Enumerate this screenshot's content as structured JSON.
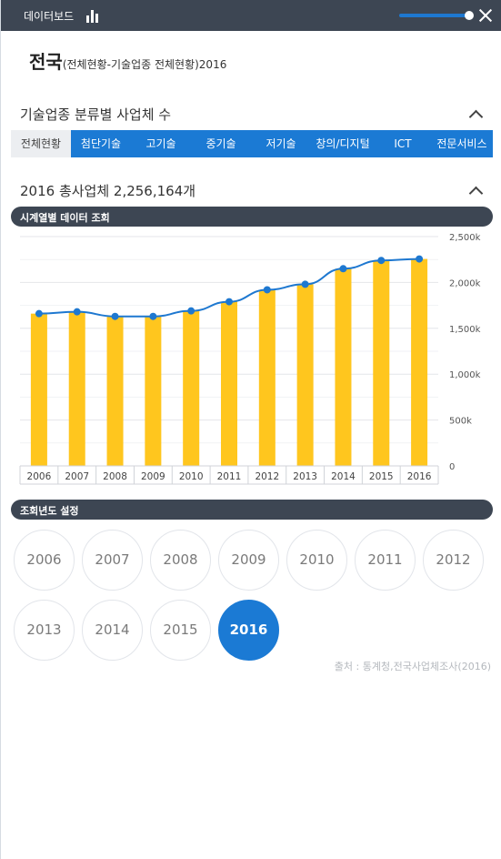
{
  "topbar": {
    "title": "데이터보드"
  },
  "heading": {
    "region": "전국",
    "subtitle": "(전체현황-기술업종 전체현황)2016"
  },
  "section1": {
    "title": "기술업종 분류별 사업체 수"
  },
  "tabs": [
    {
      "label": "전체현황",
      "active": true
    },
    {
      "label": "첨단기술",
      "active": false
    },
    {
      "label": "고기술",
      "active": false
    },
    {
      "label": "중기술",
      "active": false
    },
    {
      "label": "저기술",
      "active": false
    },
    {
      "label": "창의/디지털",
      "active": false
    },
    {
      "label": "ICT",
      "active": false
    },
    {
      "label": "전문서비스",
      "active": false
    }
  ],
  "section2": {
    "title": "2016 총사업체 2,256,164개"
  },
  "timeseries_header": "시계열별 데이터 조회",
  "chart_data": {
    "type": "bar",
    "categories": [
      "2006",
      "2007",
      "2008",
      "2009",
      "2010",
      "2011",
      "2012",
      "2013",
      "2014",
      "2015",
      "2016"
    ],
    "series": [
      {
        "values": [
          1660000,
          1680000,
          1630000,
          1630000,
          1690000,
          1790000,
          1920000,
          1980000,
          2150000,
          2240000,
          2256164
        ]
      }
    ],
    "line_values": [
      1660000,
      1680000,
      1630000,
      1630000,
      1690000,
      1790000,
      1920000,
      1980000,
      2150000,
      2240000,
      2256164
    ],
    "yticks": [
      "2,500k",
      "2,000k",
      "1,500k",
      "1,000k",
      "500k",
      "0"
    ],
    "ylim": [
      0,
      2500000
    ],
    "grid": true,
    "colors": {
      "bar": "#ffc61e",
      "line": "#1e78d0"
    }
  },
  "year_setting_header": "조회년도 설정",
  "years": [
    {
      "label": "2006",
      "selected": false
    },
    {
      "label": "2007",
      "selected": false
    },
    {
      "label": "2008",
      "selected": false
    },
    {
      "label": "2009",
      "selected": false
    },
    {
      "label": "2010",
      "selected": false
    },
    {
      "label": "2011",
      "selected": false
    },
    {
      "label": "2012",
      "selected": false
    },
    {
      "label": "2013",
      "selected": false
    },
    {
      "label": "2014",
      "selected": false
    },
    {
      "label": "2015",
      "selected": false
    },
    {
      "label": "2016",
      "selected": true
    }
  ],
  "source": "출처 : 통계청,전국사업체조사(2016)",
  "colors": {
    "accent": "#1b7ad4",
    "header": "#3d4653",
    "bar": "#ffc61e"
  }
}
